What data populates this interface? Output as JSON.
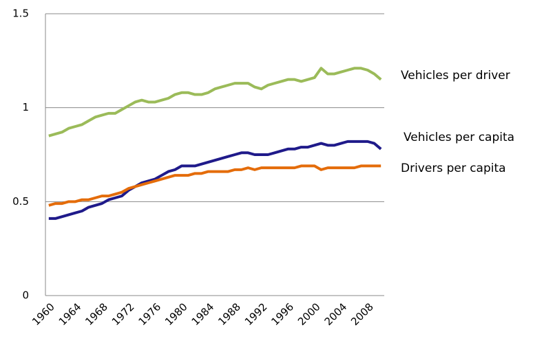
{
  "chart_data": {
    "type": "line",
    "categories": [
      "1960",
      null,
      null,
      null,
      "1964",
      null,
      null,
      null,
      "1968",
      null,
      null,
      null,
      "1972",
      null,
      null,
      null,
      "1976",
      null,
      null,
      null,
      "1980",
      null,
      null,
      null,
      "1984",
      null,
      null,
      null,
      "1988",
      null,
      null,
      null,
      "1992",
      null,
      null,
      null,
      "1996",
      null,
      null,
      null,
      "2000",
      null,
      null,
      null,
      "2004",
      null,
      null,
      null,
      "2008",
      null,
      null
    ],
    "series": [
      {
        "name": "Vehicles per driver",
        "color": "#9bbb59",
        "values": [
          0.85,
          0.86,
          0.87,
          0.89,
          0.9,
          0.91,
          0.93,
          0.95,
          0.96,
          0.97,
          0.97,
          0.99,
          1.01,
          1.03,
          1.04,
          1.03,
          1.03,
          1.04,
          1.05,
          1.07,
          1.08,
          1.08,
          1.07,
          1.07,
          1.08,
          1.1,
          1.11,
          1.12,
          1.13,
          1.13,
          1.13,
          1.11,
          1.1,
          1.12,
          1.13,
          1.14,
          1.15,
          1.15,
          1.14,
          1.15,
          1.16,
          1.21,
          1.18,
          1.18,
          1.19,
          1.2,
          1.21,
          1.21,
          1.2,
          1.18,
          1.15
        ]
      },
      {
        "name": "Vehicles per capita",
        "color": "#1f1a8a",
        "values": [
          0.41,
          0.41,
          0.42,
          0.43,
          0.44,
          0.45,
          0.47,
          0.48,
          0.49,
          0.51,
          0.52,
          0.53,
          0.56,
          0.58,
          0.6,
          0.61,
          0.62,
          0.64,
          0.66,
          0.67,
          0.69,
          0.69,
          0.69,
          0.7,
          0.71,
          0.72,
          0.73,
          0.74,
          0.75,
          0.76,
          0.76,
          0.75,
          0.75,
          0.75,
          0.76,
          0.77,
          0.78,
          0.78,
          0.79,
          0.79,
          0.8,
          0.81,
          0.8,
          0.8,
          0.81,
          0.82,
          0.82,
          0.82,
          0.82,
          0.81,
          0.78
        ]
      },
      {
        "name": "Drivers per capita",
        "color": "#e46c0a",
        "values": [
          0.48,
          0.49,
          0.49,
          0.5,
          0.5,
          0.51,
          0.51,
          0.52,
          0.53,
          0.53,
          0.54,
          0.55,
          0.57,
          0.58,
          0.59,
          0.6,
          0.61,
          0.62,
          0.63,
          0.64,
          0.64,
          0.64,
          0.65,
          0.65,
          0.66,
          0.66,
          0.66,
          0.66,
          0.67,
          0.67,
          0.68,
          0.67,
          0.68,
          0.68,
          0.68,
          0.68,
          0.68,
          0.68,
          0.69,
          0.69,
          0.69,
          0.67,
          0.68,
          0.68,
          0.68,
          0.68,
          0.68,
          0.69,
          0.69,
          0.69,
          0.69
        ]
      }
    ],
    "ylim": [
      0,
      1.5
    ],
    "yticks": [
      0,
      0.5,
      1,
      1.5
    ],
    "grid": true
  }
}
